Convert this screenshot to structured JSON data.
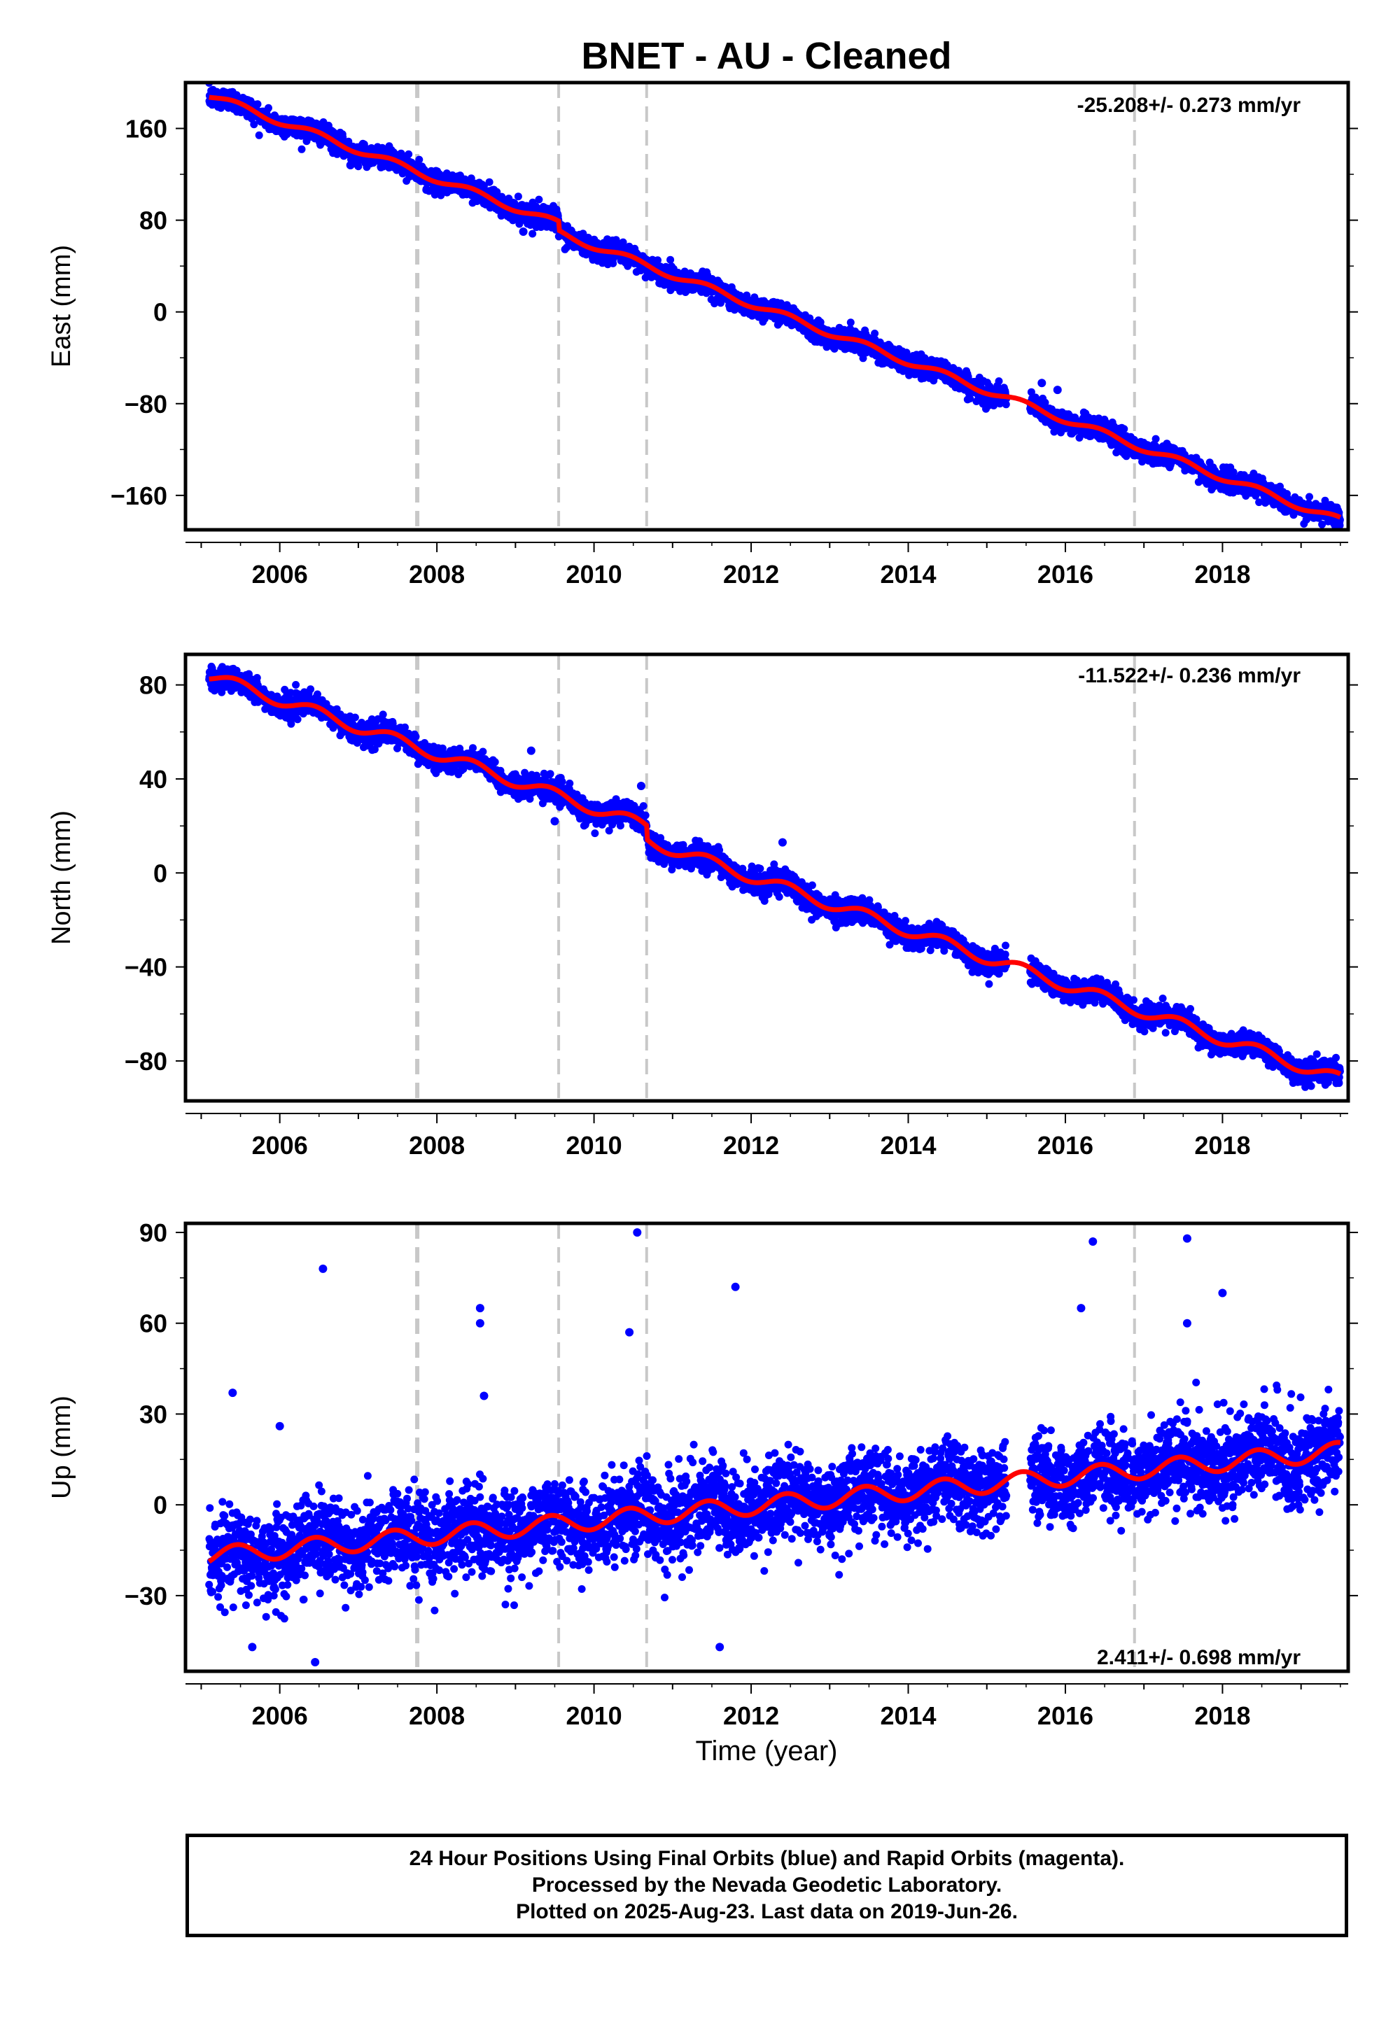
{
  "title": "BNET  - AU - Cleaned",
  "x_axis_label": "Time (year)",
  "footer": {
    "line1": "24 Hour Positions Using Final Orbits (blue) and Rapid Orbits (magenta).",
    "line2": "Processed by the Nevada Geodetic Laboratory.",
    "line3": "Plotted on 2025-Aug-23. Last data on 2019-Jun-26."
  },
  "colors": {
    "points": "#0000ff",
    "model": "#ff0000",
    "event_lines": "#c8c8c8",
    "frame": "#000000"
  },
  "chart_data": [
    {
      "type": "scatter",
      "panel": "east",
      "ylabel": "East (mm)",
      "rate_label": "-25.208+/- 0.273 mm/yr",
      "xlim": [
        2004.8,
        2019.6
      ],
      "ylim": [
        -190,
        200
      ],
      "xticks": [
        2006,
        2008,
        2010,
        2012,
        2014,
        2016,
        2018
      ],
      "yticks": [
        -160,
        -80,
        0,
        80,
        160
      ],
      "grid": false,
      "event_lines_x": [
        2007.75,
        2009.55,
        2010.67,
        2016.88
      ],
      "model": {
        "t0": 2005.1,
        "t1": 2019.5,
        "start": 189,
        "slope": -25.208,
        "seasonal_amp": 3.0,
        "steps": [
          {
            "t": 2009.55,
            "offset": -8
          }
        ]
      },
      "noise_sd": 4.5,
      "outliers": [
        [
          2006.9,
          128
        ],
        [
          2015.9,
          -68
        ],
        [
          2015.7,
          -62
        ],
        [
          2009.1,
          70
        ]
      ],
      "gap": [
        2015.25,
        2015.55
      ]
    },
    {
      "type": "scatter",
      "panel": "north",
      "ylabel": "North (mm)",
      "rate_label": "-11.522+/- 0.236 mm/yr",
      "xlim": [
        2004.8,
        2019.6
      ],
      "ylim": [
        -97,
        93
      ],
      "xticks": [
        2006,
        2008,
        2010,
        2012,
        2014,
        2016,
        2018
      ],
      "yticks": [
        -80,
        -40,
        0,
        40,
        80
      ],
      "grid": false,
      "event_lines_x": [
        2007.75,
        2009.55,
        2010.67,
        2016.88
      ],
      "model": {
        "t0": 2005.1,
        "t1": 2019.5,
        "start": 84,
        "slope": -11.522,
        "seasonal_amp": 2.5,
        "steps": [
          {
            "t": 2010.67,
            "offset": -6
          }
        ]
      },
      "noise_sd": 2.4,
      "outliers": [
        [
          2009.5,
          22
        ],
        [
          2010.6,
          37
        ],
        [
          2012.4,
          13
        ],
        [
          2009.2,
          52
        ]
      ],
      "gap": [
        2015.25,
        2015.55
      ]
    },
    {
      "type": "scatter",
      "panel": "up",
      "ylabel": "Up (mm)",
      "rate_label": "2.411+/- 0.698 mm/yr",
      "xlim": [
        2004.8,
        2019.6
      ],
      "ylim": [
        -55,
        93
      ],
      "xticks": [
        2006,
        2008,
        2010,
        2012,
        2014,
        2016,
        2018
      ],
      "yticks": [
        -30,
        0,
        30,
        60,
        90
      ],
      "grid": false,
      "event_lines_x": [
        2007.75,
        2009.55,
        2010.67,
        2016.88
      ],
      "model": {
        "t0": 2005.1,
        "t1": 2019.5,
        "start": -17,
        "slope": 2.411,
        "seasonal_amp": 3.0,
        "steps": []
      },
      "noise_sd": 7.0,
      "outliers": [
        [
          2006.55,
          78
        ],
        [
          2008.55,
          65
        ],
        [
          2008.55,
          60
        ],
        [
          2010.55,
          90
        ],
        [
          2010.45,
          57
        ],
        [
          2011.8,
          72
        ],
        [
          2016.35,
          87
        ],
        [
          2017.55,
          88
        ],
        [
          2016.2,
          65
        ],
        [
          2018.0,
          70
        ],
        [
          2017.55,
          60
        ],
        [
          2005.4,
          37
        ],
        [
          2006.45,
          -52
        ],
        [
          2005.65,
          -47
        ],
        [
          2011.6,
          -47
        ],
        [
          2008.6,
          36
        ],
        [
          2006.0,
          26
        ]
      ],
      "gap": [
        2015.25,
        2015.55
      ]
    }
  ]
}
